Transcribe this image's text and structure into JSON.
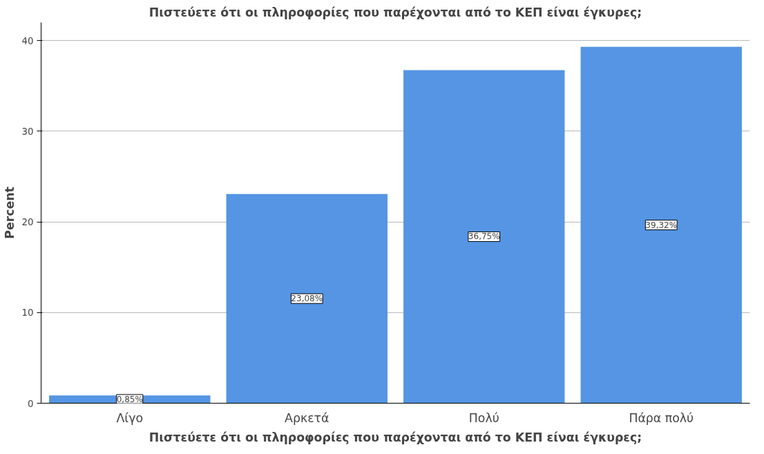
{
  "chart_data": {
    "type": "bar",
    "title": "Πιστεύετε ότι οι πληροφορίες που παρέχονται από το ΚΕΠ είναι έγκυρες;",
    "xlabel": "Πιστεύετε ότι οι πληροφορίες που παρέχονται από το ΚΕΠ είναι έγκυρες;",
    "ylabel": "Percent",
    "categories": [
      "Λίγο",
      "Αρκετά",
      "Πολύ",
      "Πάρα πολύ"
    ],
    "values": [
      0.85,
      23.08,
      36.75,
      39.32
    ],
    "value_labels": [
      "0,85%",
      "23,08%",
      "36,75%",
      "39,32%"
    ],
    "color": "#5595e3",
    "ylim": [
      0,
      42
    ],
    "yticks": [
      0,
      10,
      20,
      30,
      40
    ],
    "grid": "y"
  }
}
